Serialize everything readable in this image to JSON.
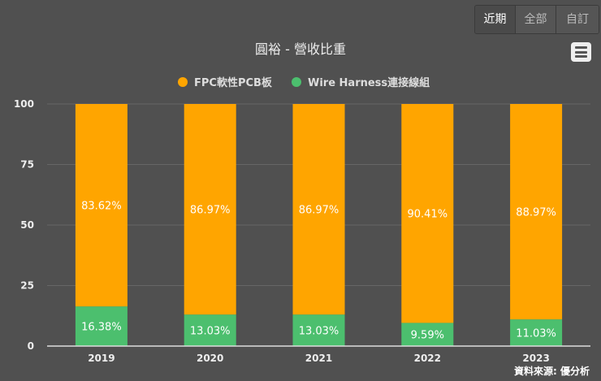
{
  "range_buttons": [
    {
      "label": "近期",
      "active": true
    },
    {
      "label": "全部",
      "active": false
    },
    {
      "label": "自訂",
      "active": false
    }
  ],
  "menu_icon": "hamburger-menu-icon",
  "source": "資料來源: 優分析",
  "chart_data": {
    "type": "bar",
    "stacked": true,
    "title": "圓裕 - 營收比重",
    "categories": [
      "2019",
      "2020",
      "2021",
      "2022",
      "2023"
    ],
    "series": [
      {
        "name": "FPC軟性PCB板",
        "color": "#FFA500",
        "values": [
          83.62,
          86.97,
          86.97,
          90.41,
          88.97
        ]
      },
      {
        "name": "Wire Harness連接線組",
        "color": "#4CBF6E",
        "values": [
          16.38,
          13.03,
          13.03,
          9.59,
          11.03
        ]
      }
    ],
    "data_labels": {
      "FPC軟性PCB板": [
        "83.62%",
        "86.97%",
        "86.97%",
        "90.41%",
        "88.97%"
      ],
      "Wire Harness連接線組": [
        "16.38%",
        "13.03%",
        "13.03%",
        "9.59%",
        "11.03%"
      ]
    },
    "yticks": [
      "0",
      "25",
      "50",
      "75",
      "100"
    ],
    "ylim": [
      0,
      100
    ],
    "grid": true,
    "legend": "top-center"
  }
}
